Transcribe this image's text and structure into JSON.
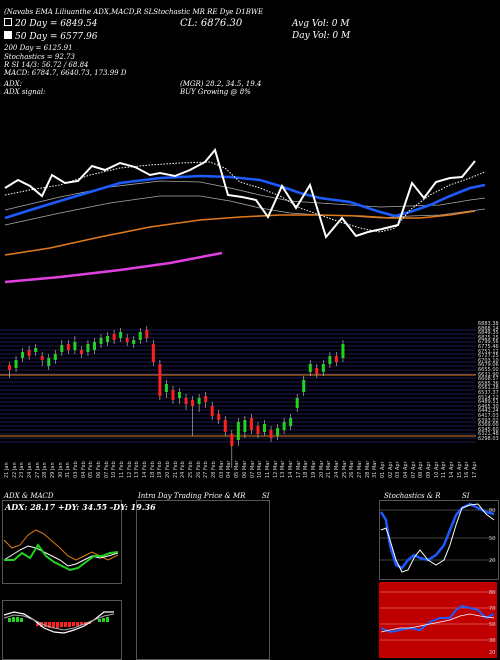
{
  "header": {
    "top_labels": "(Navabs  EMA  Liliuanthe ADX,MACD,R  SLStochastic  MR   RE  Dye  D1BWE",
    "ma20": "20  Day  = 6849.54",
    "ma50": "50  Day  = 6577.96",
    "ma200": "200  Day  = 6125.91",
    "stochastics": "Stochastics = 92.73",
    "rsi": "R          SI 14/3: 56.72 / 68.84",
    "macd": "MACD: 6784.7, 6640.73, 173.99 D",
    "cl": "CL: 6876.30",
    "avg_vol": "Avg Vol: 0  M",
    "day_vol": "Day Vol: 0  M",
    "adx_label": "ADX:",
    "adx_vals": "(MGR) 28.2, 34.5, 19.4",
    "adx_signal_label": "ADX  signal:",
    "adx_signal": "BUY Growing @ 8%"
  },
  "price_axis": [
    "6883.38",
    "6868.14",
    "6849.35",
    "6825.25",
    "6799.56",
    "6775.46",
    "6751.12",
    "6727.25",
    "6703.10",
    "6679.06",
    "6655.00",
    "6631.90",
    "6608.57",
    "6585.36",
    "6561.28",
    "6537.37",
    "6514.12",
    "6489.51",
    "6465.30",
    "6441.24",
    "6417.03",
    "6393.02",
    "6369.00",
    "6345.60",
    "6321.48",
    "6298.03"
  ],
  "date_axis": [
    "21 Jan",
    "22 Jan",
    "23 Jan",
    "24 Jan",
    "27 Jan",
    "28 Jan",
    "29 Jan",
    "30 Jan",
    "31 Jan",
    "03 Feb",
    "04 Feb",
    "05 Feb",
    "06 Feb",
    "07 Feb",
    "10 Feb",
    "11 Feb",
    "12 Feb",
    "13 Feb",
    "14 Feb",
    "18 Feb",
    "19 Feb",
    "20 Feb",
    "21 Feb",
    "24 Feb",
    "25 Feb",
    "26 Feb",
    "27 Feb",
    "28 Feb",
    "03 Mar",
    "04 Mar",
    "05 Mar",
    "06 Mar",
    "07 Mar",
    "10 Mar",
    "11 Mar",
    "12 Mar",
    "13 Mar",
    "14 Mar",
    "17 Mar",
    "18 Mar",
    "19 Mar",
    "20 Mar",
    "21 Mar",
    "24 Mar",
    "25 Mar",
    "26 Mar",
    "27 Mar",
    "28 Mar",
    "31 Mar",
    "01 Apr",
    "02 Apr",
    "03 Apr",
    "04 Apr",
    "07 Apr",
    "08 Apr",
    "09 Apr",
    "10 Apr",
    "11 Apr",
    "14 Apr",
    "15 Apr",
    "16 Apr",
    "17 Apr"
  ],
  "panels": {
    "adx_macd_title": "ADX & MACD",
    "adx_readout": "ADX: 28.17 +DY: 34.55 -DY: 19.36",
    "intraday_title": "Intra Day Trading Price & MR",
    "intraday_si": "SI",
    "stoch_title": "Stochastics & R",
    "stoch_si": "SI",
    "stoch_ticks": [
      "80",
      "50",
      "20"
    ],
    "rsi_ticks": [
      "80",
      "70",
      "50",
      "30",
      "20"
    ]
  },
  "colors": {
    "price_line": "#ffffff",
    "ema_blue": "#1e5bff",
    "ema_orange": "#e07b1a",
    "ema_magenta": "#e040e0",
    "bull": "#22d322",
    "bear": "#ff2020",
    "rsi_panel": "#c00000"
  }
}
